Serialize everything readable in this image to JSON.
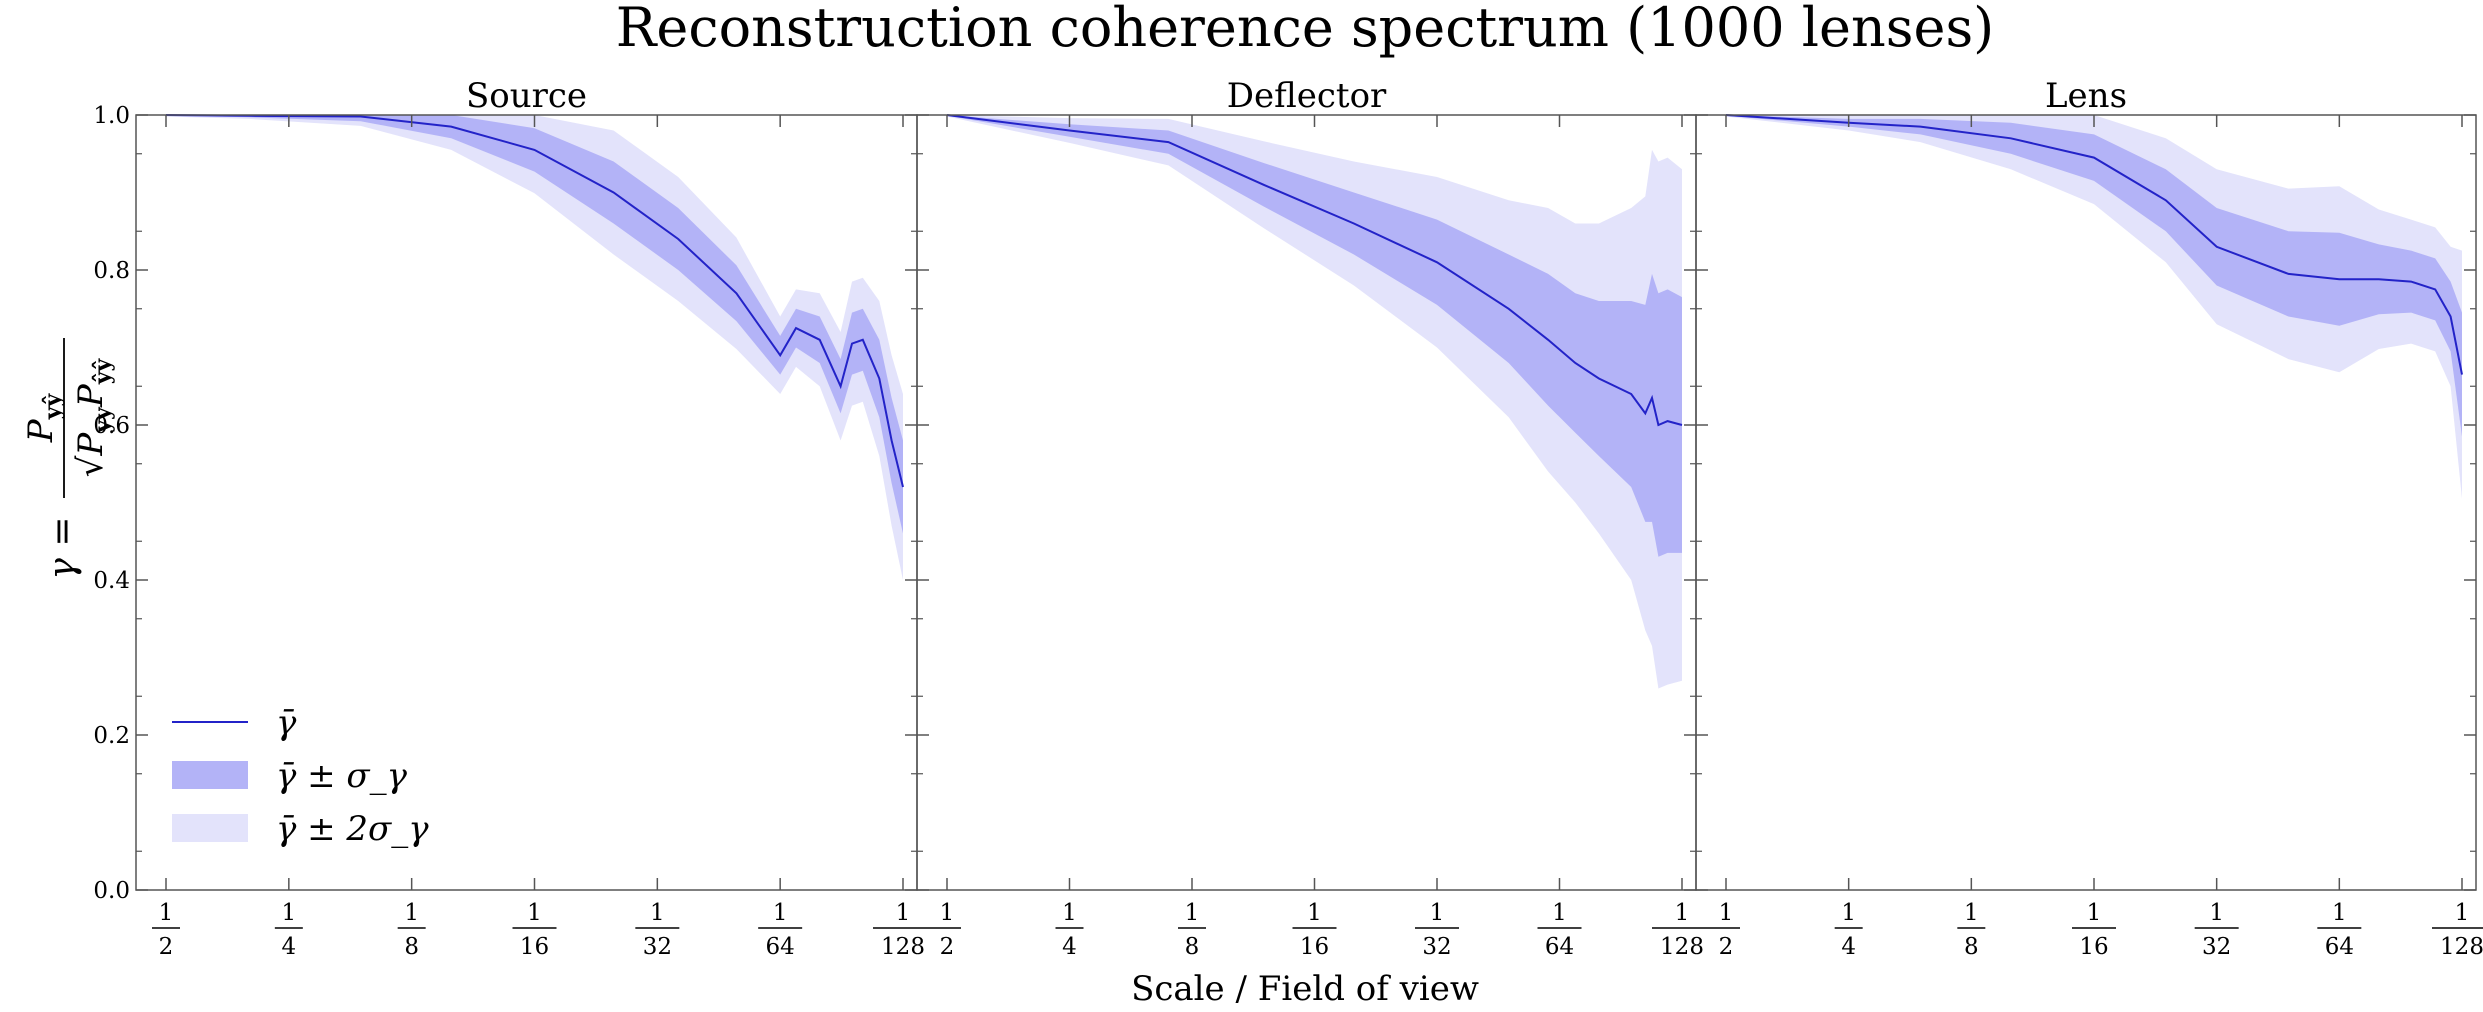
{
  "figure": {
    "title": "Reconstruction coherence spectrum (1000 lenses)",
    "xlabel": "Scale / Field of view",
    "ylabel": "γ = P_yŷ / √(P_yy P_ŷŷ)"
  },
  "legend": {
    "placement": "lower-left of first panel",
    "items": [
      {
        "label": "γ̄",
        "kind": "line"
      },
      {
        "label": "γ̄ ± σ_γ",
        "kind": "band1"
      },
      {
        "label": "γ̄ ± 2σ_γ",
        "kind": "band2"
      }
    ]
  },
  "colors": {
    "line": "#2323c8",
    "band1": "#b3b3f7",
    "band2": "#e3e3fb",
    "axis": "#555555"
  },
  "chart_data": [
    {
      "type": "line",
      "title": "Source",
      "xscale": "log2",
      "xlim": [
        0.5,
        0.0078125
      ],
      "ylim": [
        0.0,
        1.0
      ],
      "yticks": [
        0.0,
        0.2,
        0.4,
        0.6,
        0.8,
        1.0
      ],
      "xtick_denominators": [
        2,
        4,
        8,
        16,
        32,
        64,
        128
      ],
      "grid": false,
      "x_denominator": [
        2,
        3.2,
        6,
        10,
        16,
        25,
        36,
        50,
        64,
        70,
        80,
        90,
        96,
        102,
        112,
        120,
        128
      ],
      "mean": [
        1.0,
        0.999,
        0.998,
        0.985,
        0.955,
        0.9,
        0.84,
        0.77,
        0.69,
        0.725,
        0.71,
        0.65,
        0.705,
        0.71,
        0.66,
        0.58,
        0.52
      ],
      "sigma": [
        0.001,
        0.002,
        0.006,
        0.015,
        0.028,
        0.04,
        0.04,
        0.036,
        0.025,
        0.025,
        0.03,
        0.035,
        0.04,
        0.04,
        0.05,
        0.055,
        0.06
      ]
    },
    {
      "type": "line",
      "title": "Deflector",
      "xscale": "log2",
      "xlim": [
        0.5,
        0.0078125
      ],
      "ylim": [
        0.0,
        1.0
      ],
      "yticks": [
        0.0,
        0.2,
        0.4,
        0.6,
        0.8,
        1.0
      ],
      "xtick_denominators": [
        2,
        4,
        8,
        16,
        32,
        64,
        128
      ],
      "grid": false,
      "x_denominator": [
        2,
        4,
        7,
        12,
        20,
        32,
        48,
        60,
        70,
        80,
        96,
        104,
        108,
        112,
        118,
        128
      ],
      "mean": [
        1.0,
        0.98,
        0.965,
        0.91,
        0.86,
        0.81,
        0.75,
        0.71,
        0.68,
        0.66,
        0.64,
        0.615,
        0.635,
        0.6,
        0.605,
        0.6
      ],
      "sigma": [
        0.001,
        0.008,
        0.015,
        0.028,
        0.04,
        0.055,
        0.07,
        0.085,
        0.09,
        0.1,
        0.12,
        0.14,
        0.16,
        0.17,
        0.17,
        0.165
      ]
    },
    {
      "type": "line",
      "title": "Lens",
      "xscale": "log2",
      "xlim": [
        0.5,
        0.0078125
      ],
      "ylim": [
        0.0,
        1.0
      ],
      "yticks": [
        0.0,
        0.2,
        0.4,
        0.6,
        0.8,
        1.0
      ],
      "xtick_denominators": [
        2,
        4,
        8,
        16,
        32,
        64,
        128
      ],
      "grid": false,
      "x_denominator": [
        2,
        4,
        6,
        10,
        16,
        24,
        32,
        48,
        64,
        80,
        96,
        110,
        120,
        128
      ],
      "mean": [
        1.0,
        0.99,
        0.985,
        0.97,
        0.945,
        0.89,
        0.83,
        0.795,
        0.788,
        0.788,
        0.785,
        0.775,
        0.74,
        0.665
      ],
      "sigma": [
        0.001,
        0.005,
        0.01,
        0.02,
        0.03,
        0.04,
        0.05,
        0.055,
        0.06,
        0.045,
        0.04,
        0.04,
        0.045,
        0.08
      ]
    }
  ]
}
